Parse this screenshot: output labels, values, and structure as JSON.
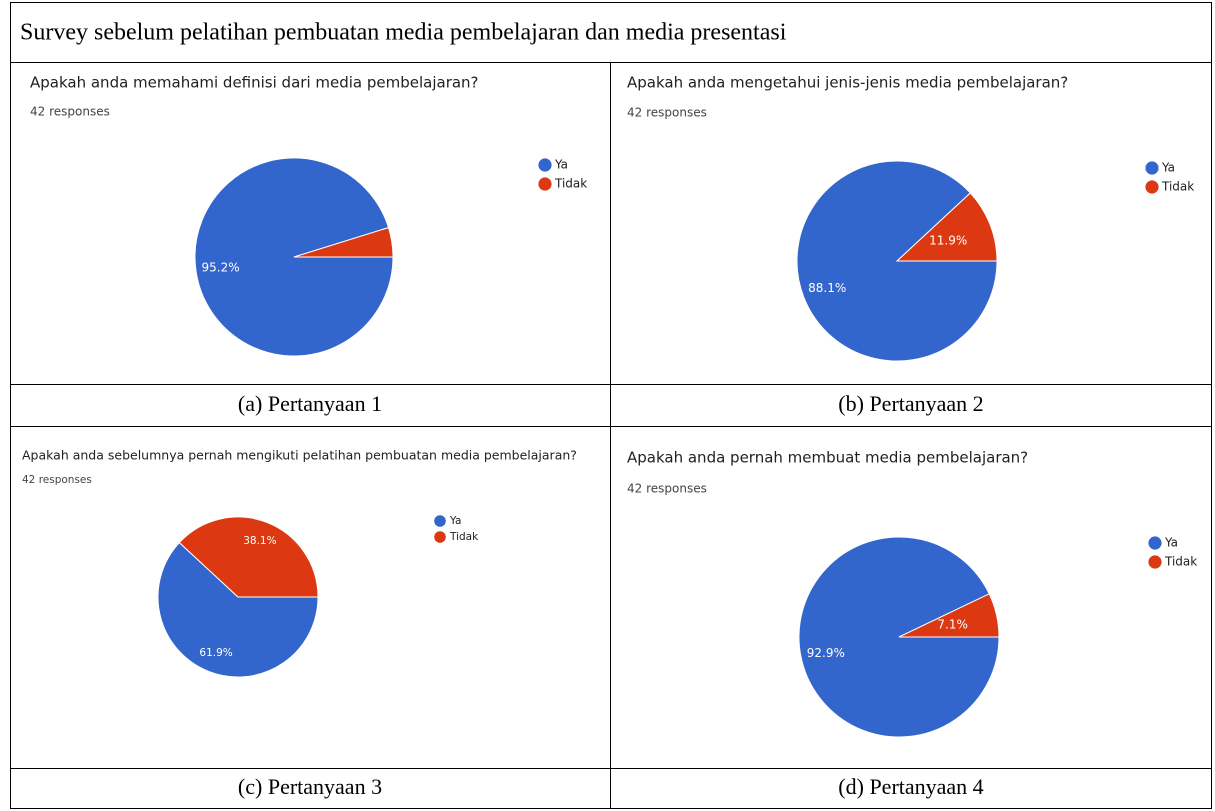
{
  "title": "Survey sebelum pelatihan pembuatan media pembelajaran dan media presentasi",
  "chart_data": [
    {
      "type": "pie",
      "title": "Apakah anda memahami definisi dari media pembelajaran?",
      "subtitle": "42 responses",
      "categories": [
        "Ya",
        "Tidak"
      ],
      "values": [
        95.2,
        4.8
      ],
      "value_labels": [
        "95.2%",
        null
      ],
      "colors": [
        "#3366cc",
        "#dc3912"
      ],
      "caption": "(a) Pertanyaan 1"
    },
    {
      "type": "pie",
      "title": "Apakah anda mengetahui jenis-jenis media pembelajaran?",
      "subtitle": "42 responses",
      "categories": [
        "Ya",
        "Tidak"
      ],
      "values": [
        88.1,
        11.9
      ],
      "value_labels": [
        "88.1%",
        "11.9%"
      ],
      "colors": [
        "#3366cc",
        "#dc3912"
      ],
      "caption": "(b) Pertanyaan 2"
    },
    {
      "type": "pie",
      "title": "Apakah anda sebelumnya pernah mengikuti pelatihan pembuatan media pembelajaran?",
      "subtitle": "42 responses",
      "categories": [
        "Ya",
        "Tidak"
      ],
      "values": [
        61.9,
        38.1
      ],
      "value_labels": [
        "61.9%",
        "38.1%"
      ],
      "colors": [
        "#3366cc",
        "#dc3912"
      ],
      "caption": "(c) Pertanyaan 3"
    },
    {
      "type": "pie",
      "title": "Apakah anda pernah membuat media pembelajaran?",
      "subtitle": "42 responses",
      "categories": [
        "Ya",
        "Tidak"
      ],
      "values": [
        92.9,
        7.1
      ],
      "value_labels": [
        "92.9%",
        "7.1%"
      ],
      "colors": [
        "#3366cc",
        "#dc3912"
      ],
      "caption": "(d) Pertanyaan 4"
    }
  ]
}
